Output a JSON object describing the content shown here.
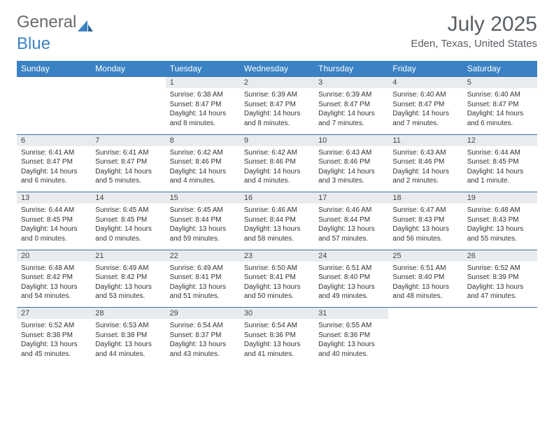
{
  "logo": {
    "text_a": "General",
    "text_b": "Blue"
  },
  "title": "July 2025",
  "location": "Eden, Texas, United States",
  "colors": {
    "header_bg": "#3b82c4",
    "header_text": "#ffffff",
    "daynum_bg": "#e9ecef",
    "border": "#3b6fa5",
    "body_text": "#333333",
    "logo_gray": "#666a6e",
    "logo_blue": "#3b82c4"
  },
  "day_headers": [
    "Sunday",
    "Monday",
    "Tuesday",
    "Wednesday",
    "Thursday",
    "Friday",
    "Saturday"
  ],
  "weeks": [
    [
      null,
      null,
      {
        "n": "1",
        "sr": "6:38 AM",
        "ss": "8:47 PM",
        "dl": "14 hours and 8 minutes."
      },
      {
        "n": "2",
        "sr": "6:39 AM",
        "ss": "8:47 PM",
        "dl": "14 hours and 8 minutes."
      },
      {
        "n": "3",
        "sr": "6:39 AM",
        "ss": "8:47 PM",
        "dl": "14 hours and 7 minutes."
      },
      {
        "n": "4",
        "sr": "6:40 AM",
        "ss": "8:47 PM",
        "dl": "14 hours and 7 minutes."
      },
      {
        "n": "5",
        "sr": "6:40 AM",
        "ss": "8:47 PM",
        "dl": "14 hours and 6 minutes."
      }
    ],
    [
      {
        "n": "6",
        "sr": "6:41 AM",
        "ss": "8:47 PM",
        "dl": "14 hours and 6 minutes."
      },
      {
        "n": "7",
        "sr": "6:41 AM",
        "ss": "8:47 PM",
        "dl": "14 hours and 5 minutes."
      },
      {
        "n": "8",
        "sr": "6:42 AM",
        "ss": "8:46 PM",
        "dl": "14 hours and 4 minutes."
      },
      {
        "n": "9",
        "sr": "6:42 AM",
        "ss": "8:46 PM",
        "dl": "14 hours and 4 minutes."
      },
      {
        "n": "10",
        "sr": "6:43 AM",
        "ss": "8:46 PM",
        "dl": "14 hours and 3 minutes."
      },
      {
        "n": "11",
        "sr": "6:43 AM",
        "ss": "8:46 PM",
        "dl": "14 hours and 2 minutes."
      },
      {
        "n": "12",
        "sr": "6:44 AM",
        "ss": "8:45 PM",
        "dl": "14 hours and 1 minute."
      }
    ],
    [
      {
        "n": "13",
        "sr": "6:44 AM",
        "ss": "8:45 PM",
        "dl": "14 hours and 0 minutes."
      },
      {
        "n": "14",
        "sr": "6:45 AM",
        "ss": "8:45 PM",
        "dl": "14 hours and 0 minutes."
      },
      {
        "n": "15",
        "sr": "6:45 AM",
        "ss": "8:44 PM",
        "dl": "13 hours and 59 minutes."
      },
      {
        "n": "16",
        "sr": "6:46 AM",
        "ss": "8:44 PM",
        "dl": "13 hours and 58 minutes."
      },
      {
        "n": "17",
        "sr": "6:46 AM",
        "ss": "8:44 PM",
        "dl": "13 hours and 57 minutes."
      },
      {
        "n": "18",
        "sr": "6:47 AM",
        "ss": "8:43 PM",
        "dl": "13 hours and 56 minutes."
      },
      {
        "n": "19",
        "sr": "6:48 AM",
        "ss": "8:43 PM",
        "dl": "13 hours and 55 minutes."
      }
    ],
    [
      {
        "n": "20",
        "sr": "6:48 AM",
        "ss": "8:42 PM",
        "dl": "13 hours and 54 minutes."
      },
      {
        "n": "21",
        "sr": "6:49 AM",
        "ss": "8:42 PM",
        "dl": "13 hours and 53 minutes."
      },
      {
        "n": "22",
        "sr": "6:49 AM",
        "ss": "8:41 PM",
        "dl": "13 hours and 51 minutes."
      },
      {
        "n": "23",
        "sr": "6:50 AM",
        "ss": "8:41 PM",
        "dl": "13 hours and 50 minutes."
      },
      {
        "n": "24",
        "sr": "6:51 AM",
        "ss": "8:40 PM",
        "dl": "13 hours and 49 minutes."
      },
      {
        "n": "25",
        "sr": "6:51 AM",
        "ss": "8:40 PM",
        "dl": "13 hours and 48 minutes."
      },
      {
        "n": "26",
        "sr": "6:52 AM",
        "ss": "8:39 PM",
        "dl": "13 hours and 47 minutes."
      }
    ],
    [
      {
        "n": "27",
        "sr": "6:52 AM",
        "ss": "8:38 PM",
        "dl": "13 hours and 45 minutes."
      },
      {
        "n": "28",
        "sr": "6:53 AM",
        "ss": "8:38 PM",
        "dl": "13 hours and 44 minutes."
      },
      {
        "n": "29",
        "sr": "6:54 AM",
        "ss": "8:37 PM",
        "dl": "13 hours and 43 minutes."
      },
      {
        "n": "30",
        "sr": "6:54 AM",
        "ss": "8:36 PM",
        "dl": "13 hours and 41 minutes."
      },
      {
        "n": "31",
        "sr": "6:55 AM",
        "ss": "8:36 PM",
        "dl": "13 hours and 40 minutes."
      },
      null,
      null
    ]
  ]
}
